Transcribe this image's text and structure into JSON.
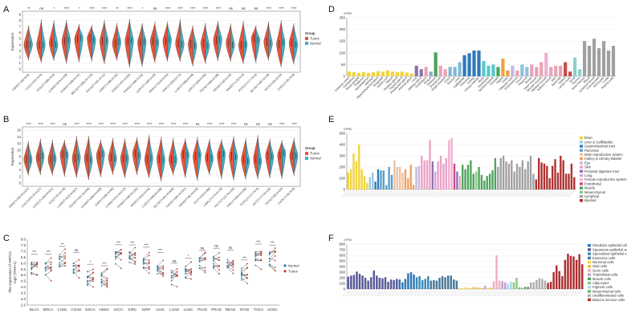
{
  "labels": {
    "A": "A",
    "B": "B",
    "C": "C",
    "D": "D",
    "E": "E",
    "F": "F"
  },
  "colors": {
    "tumor": "#e8533a",
    "normal": "#45adc4"
  },
  "panelA": {
    "ylabel": "Expression",
    "yticks": [
      "9",
      "8",
      "7",
      "6",
      "5",
      "4",
      "3",
      "2",
      "1",
      "0"
    ],
    "legend": {
      "title": "Group",
      "items": [
        "Tumor",
        "Normal"
      ]
    },
    "groups": [
      {
        "label": "GBM(T=153,N=5)",
        "sig": "**"
      },
      {
        "label": "LGG(T=516,N=5)",
        "sig": "ns"
      },
      {
        "label": "CESC(T=306,N=3)",
        "sig": "*"
      },
      {
        "label": "LUAD(T=515,N=59)",
        "sig": "****"
      },
      {
        "label": "COAD(T=288,N=41)",
        "sig": "*"
      },
      {
        "label": "BRCA(T=1092,N=113)",
        "sig": "****"
      },
      {
        "label": "ESCA(T=181,N=11)",
        "sig": "****"
      },
      {
        "label": "KIRP(T=288,N=32)",
        "sig": "**"
      },
      {
        "label": "STAD(T=414,N=36)",
        "sig": "****"
      },
      {
        "label": "PRAD(T=495,N=52)",
        "sig": "*"
      },
      {
        "label": "UCEC(T=180,N=23)",
        "sig": "ns"
      },
      {
        "label": "HNSC(T=518,N=44)",
        "sig": "****"
      },
      {
        "label": "KIRC(T=530,N=72)",
        "sig": "****"
      },
      {
        "label": "LUSC(T=498,N=49)",
        "sig": "****"
      },
      {
        "label": "LIHC(T=369,N=50)",
        "sig": "****"
      },
      {
        "label": "THCA(T=504,N=58)",
        "sig": "****"
      },
      {
        "label": "READ(T=92,N=10)",
        "sig": "ns"
      },
      {
        "label": "PAAD(T=178,N=4)",
        "sig": "ns"
      },
      {
        "label": "PCPG(T=177,N=3)",
        "sig": "ns"
      },
      {
        "label": "BLCA(T=407,N=19)",
        "sig": "****"
      },
      {
        "label": "KICH(T=65,N=24)",
        "sig": "****"
      },
      {
        "label": "CHOL(T=36,N=9)",
        "sig": "****"
      }
    ]
  },
  "panelB": {
    "ylabel": "Expression",
    "yticks": [
      "16",
      "14",
      "12",
      "10",
      "8",
      "6",
      "4",
      "2",
      "0"
    ],
    "legend": {
      "title": "Group",
      "items": [
        "Tumor",
        "Normal"
      ]
    },
    "groups": [
      {
        "label": "GBM(T=153,N=1157)",
        "sig": "****"
      },
      {
        "label": "LGG(T=516,N=1157)",
        "sig": "****"
      },
      {
        "label": "UCEC(T=180,N=101)",
        "sig": "****"
      },
      {
        "label": "UCS(T=57,N=78)",
        "sig": "ns"
      },
      {
        "label": "LUAD(T=515,N=347)",
        "sig": "****"
      },
      {
        "label": "ESCA(T=181,N=668)",
        "sig": "****"
      },
      {
        "label": "COAD(T=288,N=349)",
        "sig": "****"
      },
      {
        "label": "KIRP(T=288,N=60)",
        "sig": "****"
      },
      {
        "label": "STAD(T=414,N=210)",
        "sig": "****"
      },
      {
        "label": "PRAD(T=495,N=152)",
        "sig": "****"
      },
      {
        "label": "HNSC(T=518,N=44)",
        "sig": "****"
      },
      {
        "label": "LUSC(T=498,N=338)",
        "sig": "****"
      },
      {
        "label": "SKCM(T=461,N=558)",
        "sig": "****"
      },
      {
        "label": "THCA(T=504,N=337)",
        "sig": "****"
      },
      {
        "label": "READ(T=92,N=318)",
        "sig": "ns"
      },
      {
        "label": "OV(T=419,N=88)",
        "sig": "****"
      },
      {
        "label": "LAML(T=173,N=70)",
        "sig": "****"
      },
      {
        "label": "TGCT(T=137,N=165)",
        "sig": "****"
      },
      {
        "label": "KIRC(T=530,N=100)",
        "sig": "ns"
      },
      {
        "label": "PCPG(T=177,N=3)",
        "sig": "ns"
      },
      {
        "label": "ACC(T=77,N=128)",
        "sig": "ns"
      },
      {
        "label": "KICH(T=65,N=53)",
        "sig": "****"
      },
      {
        "label": "CHOL(T=36,N=9)",
        "sig": "****"
      }
    ]
  },
  "panelC": {
    "ylabel": "The expression of ARPC5",
    "ylabel2": "log2 (TPM+1)",
    "yticks": [
      "8.0",
      "7.5",
      "7.0",
      "6.5",
      "6.0",
      "5.5",
      "5.0",
      "4.5",
      "4.0",
      "3.5",
      "3.0",
      "2.5"
    ],
    "legend": [
      "Normal",
      "Tumor"
    ],
    "groups": [
      {
        "label": "BLCA",
        "sig": "***"
      },
      {
        "label": "BRCA",
        "sig": "***"
      },
      {
        "label": "CHOL",
        "sig": "**"
      },
      {
        "label": "COAD",
        "sig": "ns"
      },
      {
        "label": "ESCA",
        "sig": "*"
      },
      {
        "label": "HNSC",
        "sig": "***"
      },
      {
        "label": "KICH",
        "sig": "***"
      },
      {
        "label": "KIRC",
        "sig": "***"
      },
      {
        "label": "KIRP",
        "sig": "***"
      },
      {
        "label": "LIHC",
        "sig": "***"
      },
      {
        "label": "LUAD",
        "sig": "ns"
      },
      {
        "label": "LUSC",
        "sig": "*"
      },
      {
        "label": "PAAD",
        "sig": "ns"
      },
      {
        "label": "PRAD",
        "sig": "ns"
      },
      {
        "label": "READ",
        "sig": "ns"
      },
      {
        "label": "STAD",
        "sig": "***"
      },
      {
        "label": "THCA",
        "sig": "***"
      },
      {
        "label": "UCEC",
        "sig": "***"
      }
    ]
  },
  "panelD": {
    "ylabel": "nTPM",
    "yticks": [
      "250",
      "200",
      "150",
      "100",
      "50",
      "0"
    ],
    "bars": [
      {
        "label": "Cerebral cortex",
        "value": 20,
        "color": "#f0d43a"
      },
      {
        "label": "Cerebellum",
        "value": 18,
        "color": "#f0d43a"
      },
      {
        "label": "Basal ganglia",
        "value": 14,
        "color": "#f0d43a"
      },
      {
        "label": "Thalamus",
        "value": 18,
        "color": "#f0d43a"
      },
      {
        "label": "Hypothalamus",
        "value": 15,
        "color": "#f0d43a"
      },
      {
        "label": "Midbrain",
        "value": 17,
        "color": "#f0d43a"
      },
      {
        "label": "Hippocampal formation",
        "value": 22,
        "color": "#f0d43a"
      },
      {
        "label": "Amygdala",
        "value": 20,
        "color": "#f0d43a"
      },
      {
        "label": "Spinal cord",
        "value": 25,
        "color": "#f0d43a"
      },
      {
        "label": "Retina",
        "value": 20,
        "color": "#f0d43a"
      },
      {
        "label": "Pituitary gland",
        "value": 18,
        "color": "#f0d43a"
      },
      {
        "label": "Thyroid gland",
        "value": 20,
        "color": "#f0d43a"
      },
      {
        "label": "Parathyroid gland",
        "value": 16,
        "color": "#f0d43a"
      },
      {
        "label": "Adrenal gland",
        "value": 12,
        "color": "#f0d43a"
      },
      {
        "label": "Lung",
        "value": 45,
        "color": "#8a74ad"
      },
      {
        "label": "Salivary gland",
        "value": 30,
        "color": "#8a74ad"
      },
      {
        "label": "Esophagus",
        "value": 40,
        "color": "#e8a3b3"
      },
      {
        "label": "Tongue",
        "value": 20,
        "color": "#8aa8c8"
      },
      {
        "label": "Stomach",
        "value": 102,
        "color": "#4da35a"
      },
      {
        "label": "Duodenum",
        "value": 45,
        "color": "#e8a3b3"
      },
      {
        "label": "Small intestine",
        "value": 30,
        "color": "#e8a3b3"
      },
      {
        "label": "Colon",
        "value": 40,
        "color": "#7fb9d8"
      },
      {
        "label": "Rectum",
        "value": 40,
        "color": "#7fb9d8"
      },
      {
        "label": "Liver",
        "value": 60,
        "color": "#7fb9d8"
      },
      {
        "label": "Gallbladder",
        "value": 90,
        "color": "#2f78b8"
      },
      {
        "label": "Pancreas",
        "value": 98,
        "color": "#2f78b8"
      },
      {
        "label": "Kidney",
        "value": 110,
        "color": "#2f78b8"
      },
      {
        "label": "Urinary bladder",
        "value": 110,
        "color": "#2f78b8"
      },
      {
        "label": "Testis",
        "value": 65,
        "color": "#5ac8c8"
      },
      {
        "label": "Epididymis",
        "value": 45,
        "color": "#5ac8c8"
      },
      {
        "label": "Seminal vesicle",
        "value": 50,
        "color": "#5ac8c8"
      },
      {
        "label": "Prostate",
        "value": 40,
        "color": "#4da35a"
      },
      {
        "label": "Vagina",
        "value": 75,
        "color": "#f0a040"
      },
      {
        "label": "Ovary",
        "value": 25,
        "color": "#f0a040"
      },
      {
        "label": "Fallopian tube",
        "value": 45,
        "color": "#c8b8e0"
      },
      {
        "label": "Endometrium",
        "value": 25,
        "color": "#e8a3b3"
      },
      {
        "label": "Cervix",
        "value": 50,
        "color": "#8ac0e0"
      },
      {
        "label": "Placenta",
        "value": 40,
        "color": "#8ac0e0"
      },
      {
        "label": "Breast",
        "value": 50,
        "color": "#e8a3b3"
      },
      {
        "label": "Heart muscle",
        "value": 40,
        "color": "#e8a3b3"
      },
      {
        "label": "Smooth muscle",
        "value": 60,
        "color": "#e8a3b3"
      },
      {
        "label": "Skeletal muscle",
        "value": 100,
        "color": "#f0b0d0"
      },
      {
        "label": "Adipose tissue",
        "value": 40,
        "color": "#e8a3b3"
      },
      {
        "label": "Skin",
        "value": 45,
        "color": "#e8a3b3"
      },
      {
        "label": "Appendix",
        "value": 45,
        "color": "#e8a3b3"
      },
      {
        "label": "Spleen",
        "value": 60,
        "color": "#c84a4a"
      },
      {
        "label": "Lymph node",
        "value": 20,
        "color": "#c84a4a"
      },
      {
        "label": "Tonsil",
        "value": 80,
        "color": "#8ad0c8"
      },
      {
        "label": "Thymus",
        "value": 30,
        "color": "#8ad0c8"
      },
      {
        "label": "Bone marrow",
        "value": 150,
        "color": "#a0a0a0"
      },
      {
        "label": "Blood",
        "value": 130,
        "color": "#a0a0a0"
      },
      {
        "label": "Lymphoid tissue",
        "value": 160,
        "color": "#a0a0a0"
      },
      {
        "label": "Granulocytes",
        "value": 120,
        "color": "#a0a0a0"
      },
      {
        "label": "Monocytes",
        "value": 150,
        "color": "#a0a0a0"
      },
      {
        "label": "T-cells",
        "value": 110,
        "color": "#a0a0a0"
      },
      {
        "label": "Plasma cells",
        "value": 130,
        "color": "#a0a0a0"
      }
    ]
  },
  "panelE": {
    "ylabel": "nTPM",
    "yticks": [
      "500",
      "400",
      "300",
      "200",
      "100",
      "0"
    ],
    "legend": [
      {
        "label": "Brain",
        "color": "#f0d43a"
      },
      {
        "label": "Liver & Gallbladder",
        "color": "#9ec8e0"
      },
      {
        "label": "Gastrointestinal tract",
        "color": "#2f78b8"
      },
      {
        "label": "Pancreas",
        "color": "#5aa0c8"
      },
      {
        "label": "Male reproductive system",
        "color": "#f0c0a0"
      },
      {
        "label": "Kidney & Urinary bladder",
        "color": "#f0a060"
      },
      {
        "label": "Eye",
        "color": "#c8b8e0"
      },
      {
        "label": "Skin",
        "color": "#e8a3c8"
      },
      {
        "label": "Proximal digestive tract",
        "color": "#8a74ad"
      },
      {
        "label": "Lung",
        "color": "#d8a0d8"
      },
      {
        "label": "Female reproductive system",
        "color": "#f0b0d0"
      },
      {
        "label": "Endothelial",
        "color": "#c84a8a"
      },
      {
        "label": "Muscle",
        "color": "#4da35a"
      },
      {
        "label": "Mesenchymal",
        "color": "#8ac880"
      },
      {
        "label": "Lymphoid",
        "color": "#a0a0a0"
      },
      {
        "label": "Myeloid",
        "color": "#b03030"
      }
    ],
    "values": [
      150,
      180,
      320,
      250,
      400,
      180,
      120,
      60,
      110,
      150,
      70,
      180,
      170,
      170,
      40,
      200,
      130,
      260,
      200,
      200,
      150,
      180,
      100,
      220,
      40,
      200,
      210,
      300,
      260,
      260,
      440,
      250,
      160,
      250,
      300,
      230,
      280,
      440,
      460,
      230,
      160,
      120,
      220,
      180,
      220,
      260,
      140,
      160,
      200,
      130,
      80,
      120,
      140,
      170,
      280,
      200,
      280,
      300,
      250,
      230,
      260,
      160,
      230,
      200,
      260,
      180,
      250,
      300,
      140,
      90,
      280,
      240,
      230,
      210,
      100,
      210,
      270,
      150,
      300,
      260,
      140,
      140,
      230,
      110
    ],
    "colors": [
      "#f0d43a",
      "#f0d43a",
      "#f0d43a",
      "#f0d43a",
      "#f0d43a",
      "#f0d43a",
      "#f0d43a",
      "#f0d43a",
      "#9ec8e0",
      "#9ec8e0",
      "#2f78b8",
      "#2f78b8",
      "#5aa0c8",
      "#5aa0c8",
      "#5aa0c8",
      "#5aa0c8",
      "#5aa0c8",
      "#f0c0a0",
      "#f0c0a0",
      "#f0c0a0",
      "#f0c0a0",
      "#f0a060",
      "#f0a060",
      "#f0a060",
      "#f0a060",
      "#c8b8e0",
      "#c8b8e0",
      "#e8a3c8",
      "#e8a3c8",
      "#e8a3c8",
      "#e8a3c8",
      "#8a74ad",
      "#d8a0d8",
      "#e8a3c8",
      "#e8a3c8",
      "#e8a3c8",
      "#e8a3c8",
      "#f0b0d0",
      "#f0b0d0",
      "#c84a8a",
      "#8a74ad",
      "#e8a3c8",
      "#4da35a",
      "#4da35a",
      "#4da35a",
      "#4da35a",
      "#4da35a",
      "#8ac880",
      "#4da35a",
      "#4da35a",
      "#4da35a",
      "#4da35a",
      "#4da35a",
      "#4da35a",
      "#4da35a",
      "#a0a0a0",
      "#a0a0a0",
      "#a0a0a0",
      "#a0a0a0",
      "#a0a0a0",
      "#a0a0a0",
      "#a0a0a0",
      "#a0a0a0",
      "#a0a0a0",
      "#a0a0a0",
      "#a0a0a0",
      "#a0a0a0",
      "#a0a0a0",
      "#a0a0a0",
      "#b03030",
      "#b03030",
      "#b03030",
      "#b03030",
      "#b03030",
      "#b03030",
      "#b03030",
      "#b03030",
      "#b03030",
      "#b03030",
      "#b03030",
      "#b03030",
      "#b03030",
      "#b03030",
      "#b03030"
    ]
  },
  "panelF": {
    "ylabel": "nTPM",
    "yticks": [
      "800",
      "700",
      "600",
      "500",
      "400",
      "300",
      "200",
      "100",
      "0"
    ],
    "legend": [
      {
        "label": "Glandular epithelial cells",
        "color": "#2f78b8"
      },
      {
        "label": "Squamous epithelial cells",
        "color": "#5a5a9a"
      },
      {
        "label": "Specialized epithelial cells",
        "color": "#3a8ab8"
      },
      {
        "label": "Endocrine cells",
        "color": "#4a7a9a"
      },
      {
        "label": "Neuronal cells",
        "color": "#f0d43a"
      },
      {
        "label": "Glial cells",
        "color": "#f0c040"
      },
      {
        "label": "Germ cells",
        "color": "#f0b0c0"
      },
      {
        "label": "Trophoblast cells",
        "color": "#c0a0d0"
      },
      {
        "label": "Muscle cells",
        "color": "#4da35a"
      },
      {
        "label": "Adipocytes",
        "color": "#8ac880"
      },
      {
        "label": "Pigment cells",
        "color": "#a8d8f0"
      },
      {
        "label": "Mesenchymal cells",
        "color": "#6ab86a"
      },
      {
        "label": "Undifferentiated cells",
        "color": "#b0b0b0"
      },
      {
        "label": "Blood & immune cells",
        "color": "#b03030"
      }
    ],
    "values": [
      220,
      240,
      250,
      310,
      270,
      240,
      200,
      150,
      210,
      330,
      240,
      200,
      190,
      210,
      130,
      170,
      160,
      180,
      170,
      120,
      180,
      280,
      300,
      260,
      210,
      230,
      160,
      180,
      230,
      150,
      160,
      150,
      200,
      230,
      210,
      240,
      240,
      170,
      150,
      20,
      15,
      30,
      20,
      15,
      40,
      30,
      25,
      20,
      60,
      20,
      30,
      140,
      600,
      150,
      140,
      120,
      90,
      130,
      120,
      200,
      30,
      20,
      40,
      40,
      120,
      120,
      160,
      190,
      180,
      150,
      110,
      130,
      300,
      420,
      320,
      230,
      520,
      630,
      590,
      580,
      520,
      620,
      440
    ],
    "colors": [
      "#5a5a9a",
      "#5a5a9a",
      "#5a5a9a",
      "#5a5a9a",
      "#5a5a9a",
      "#5a5a9a",
      "#5a5a9a",
      "#5a5a9a",
      "#5a5a9a",
      "#5a5a9a",
      "#5a5a9a",
      "#5a5a9a",
      "#5a5a9a",
      "#5a5a9a",
      "#5a5a9a",
      "#5a5a9a",
      "#5a5a9a",
      "#5a5a9a",
      "#2f78b8",
      "#2f78b8",
      "#2f78b8",
      "#2f78b8",
      "#2f78b8",
      "#2f78b8",
      "#3a8ab8",
      "#3a8ab8",
      "#3a8ab8",
      "#3a8ab8",
      "#3a8ab8",
      "#4a7a9a",
      "#4a7a9a",
      "#4a7a9a",
      "#4a7a9a",
      "#4a7a9a",
      "#4a7a9a",
      "#4a7a9a",
      "#4a7a9a",
      "#4a7a9a",
      "#4a7a9a",
      "#f0d43a",
      "#f0d43a",
      "#f0d43a",
      "#f0c040",
      "#f0c040",
      "#f0c040",
      "#f0c040",
      "#f0c040",
      "#f0c040",
      "#c0a0d0",
      "#f0d43a",
      "#f0c040",
      "#f0b0c0",
      "#f0b0c0",
      "#f0b0c0",
      "#c0a0d0",
      "#c0a0d0",
      "#a8d8f0",
      "#a8d8f0",
      "#8ac880",
      "#8ac880",
      "#6ab86a",
      "#6ab86a",
      "#4da35a",
      "#4da35a",
      "#b0b0b0",
      "#b0b0b0",
      "#b0b0b0",
      "#b0b0b0",
      "#b0b0b0",
      "#b0b0b0",
      "#b03030",
      "#b03030",
      "#b03030",
      "#b03030",
      "#b03030",
      "#b03030",
      "#b03030",
      "#b03030",
      "#b03030",
      "#b03030",
      "#b03030",
      "#b03030",
      "#b03030"
    ]
  },
  "chart_data": [
    {
      "type": "violin",
      "panel": "A",
      "ylabel": "Expression",
      "ylim": [
        0,
        9
      ],
      "categories_count": 22
    },
    {
      "type": "violin",
      "panel": "B",
      "ylabel": "Expression",
      "ylim": [
        0,
        16
      ],
      "categories_count": 23
    },
    {
      "type": "paired",
      "panel": "C",
      "ylabel": "The expression of ARPC5 log2 (TPM+1)",
      "ylim": [
        2.5,
        8.0
      ]
    },
    {
      "type": "bar",
      "panel": "D",
      "ylabel": "nTPM",
      "ylim": [
        0,
        250
      ]
    },
    {
      "type": "bar",
      "panel": "E",
      "ylabel": "nTPM",
      "ylim": [
        0,
        500
      ]
    },
    {
      "type": "bar",
      "panel": "F",
      "ylabel": "nTPM",
      "ylim": [
        0,
        800
      ]
    }
  ]
}
